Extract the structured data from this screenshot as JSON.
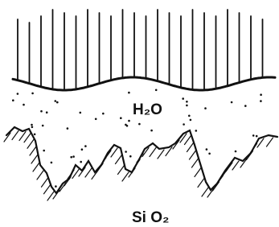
{
  "labels": {
    "water": "H₂O",
    "substrate": "Si O₂"
  }
}
